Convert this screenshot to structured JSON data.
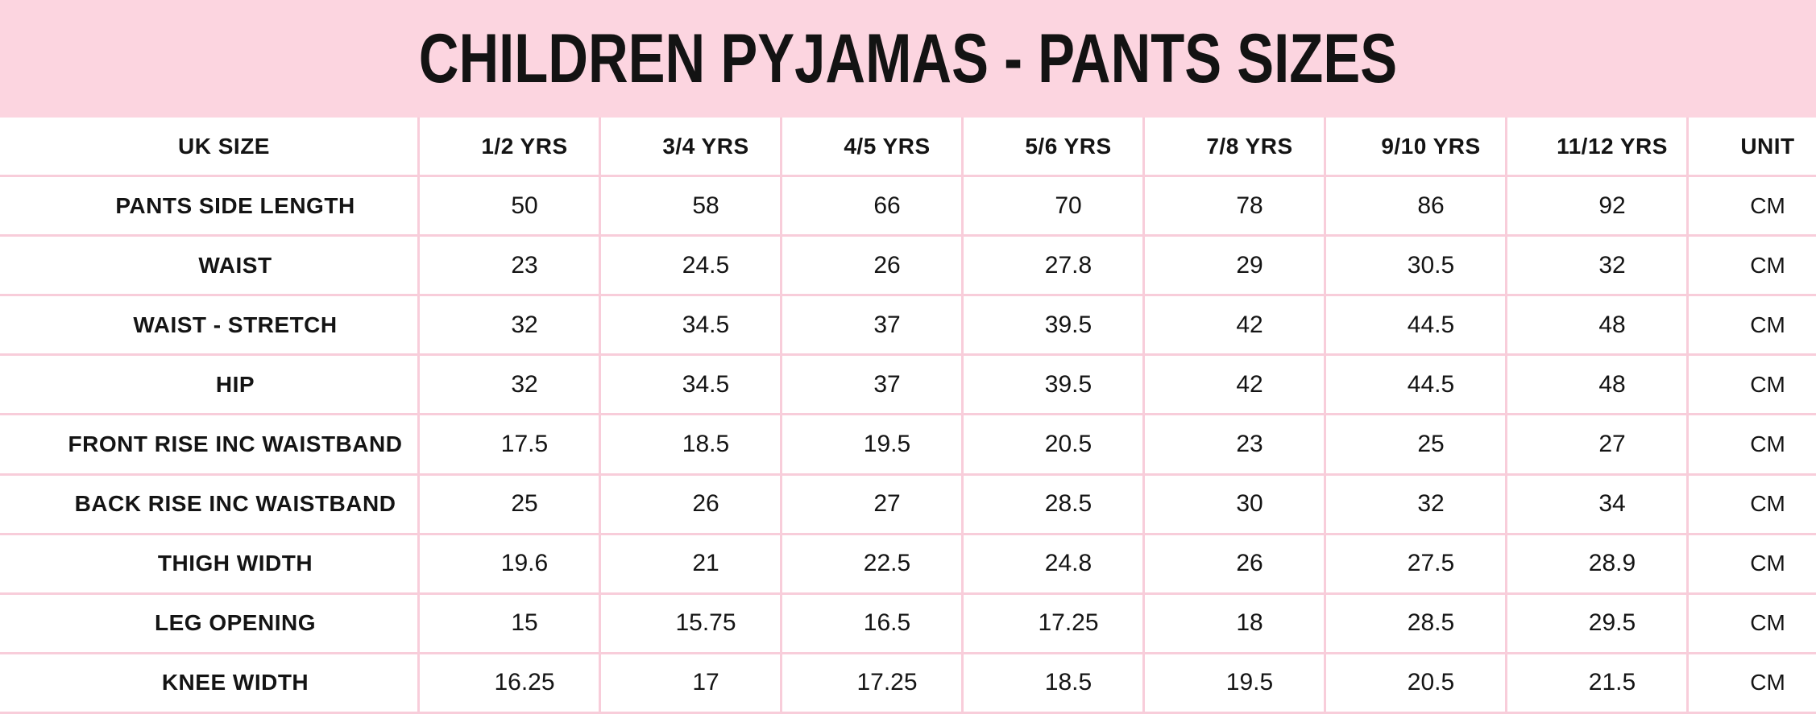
{
  "colors": {
    "title_band_background": "#fcd5e0",
    "grid_line": "#f8cdda",
    "cell_background": "#ffffff",
    "text": "#141414"
  },
  "chart_data": {
    "type": "table",
    "title": "CHILDREN PYJAMAS - PANTS SIZES",
    "columns": [
      "UK SIZE",
      "1/2 YRS",
      "3/4 YRS",
      "4/5 YRS",
      "5/6 YRS",
      "7/8 YRS",
      "9/10 YRS",
      "11/12 YRS",
      "UNIT"
    ],
    "rows": [
      {
        "label": "PANTS SIDE LENGTH",
        "values": [
          "50",
          "58",
          "66",
          "70",
          "78",
          "86",
          "92"
        ],
        "unit": "CM"
      },
      {
        "label": "WAIST",
        "values": [
          "23",
          "24.5",
          "26",
          "27.8",
          "29",
          "30.5",
          "32"
        ],
        "unit": "CM"
      },
      {
        "label": "WAIST - STRETCH",
        "values": [
          "32",
          "34.5",
          "37",
          "39.5",
          "42",
          "44.5",
          "48"
        ],
        "unit": "CM"
      },
      {
        "label": "HIP",
        "values": [
          "32",
          "34.5",
          "37",
          "39.5",
          "42",
          "44.5",
          "48"
        ],
        "unit": "CM"
      },
      {
        "label": "FRONT RISE INC WAISTBAND",
        "values": [
          "17.5",
          "18.5",
          "19.5",
          "20.5",
          "23",
          "25",
          "27"
        ],
        "unit": "CM"
      },
      {
        "label": "BACK RISE INC WAISTBAND",
        "values": [
          "25",
          "26",
          "27",
          "28.5",
          "30",
          "32",
          "34"
        ],
        "unit": "CM"
      },
      {
        "label": "THIGH WIDTH",
        "values": [
          "19.6",
          "21",
          "22.5",
          "24.8",
          "26",
          "27.5",
          "28.9"
        ],
        "unit": "CM"
      },
      {
        "label": "LEG OPENING",
        "values": [
          "15",
          "15.75",
          "16.5",
          "17.25",
          "18",
          "28.5",
          "29.5"
        ],
        "unit": "CM"
      },
      {
        "label": "KNEE WIDTH",
        "values": [
          "16.25",
          "17",
          "17.25",
          "18.5",
          "19.5",
          "20.5",
          "21.5"
        ],
        "unit": "CM"
      }
    ]
  }
}
